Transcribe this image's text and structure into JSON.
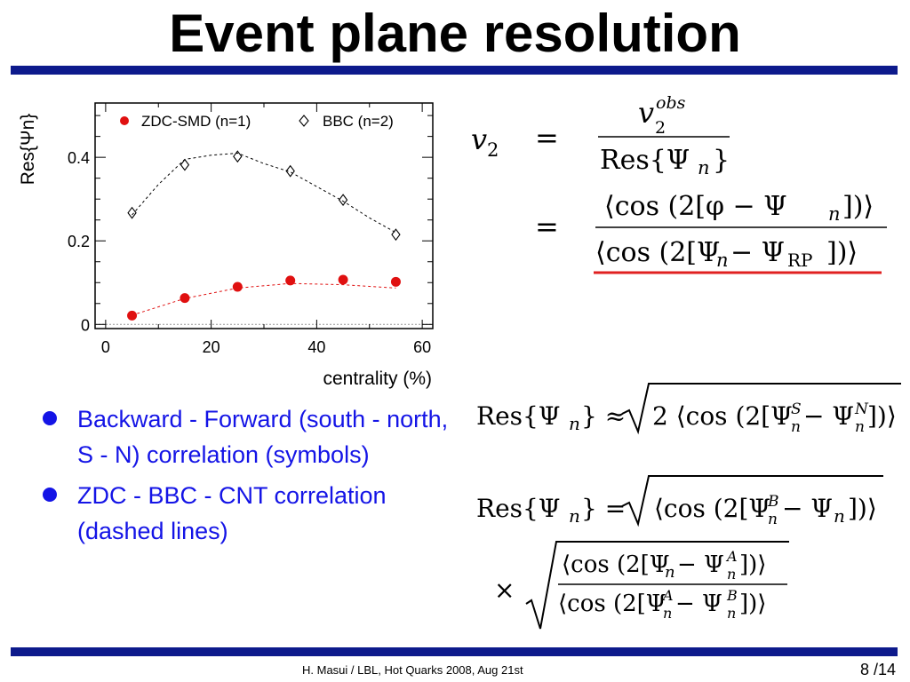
{
  "slide": {
    "title": "Event plane resolution",
    "bullets": [
      "Backward - Forward (south - north, S - N) correlation (symbols)",
      "ZDC - BBC - CNT correlation (dashed lines)"
    ],
    "footer": {
      "credit": "H. Masui / LBL,  Hot Quarks 2008, Aug 21st",
      "page": "8 /14"
    },
    "colors": {
      "rule": "#0d1a8c",
      "bullet_text": "#1414e6",
      "zdc_series": "#e01010",
      "underline": "#e02020"
    }
  },
  "chart_data": {
    "type": "scatter",
    "xlabel": "centrality (%)",
    "ylabel": "Res{Ψn}",
    "xlim": [
      -2,
      62
    ],
    "ylim": [
      -0.01,
      0.53
    ],
    "xticks": [
      0,
      20,
      40,
      60
    ],
    "yticks": [
      0,
      0.2,
      0.4
    ],
    "ytick_labels": [
      "0",
      "0.2",
      "0.4"
    ],
    "legend_position": "top",
    "series": [
      {
        "name": "ZDC-SMD (n=1)",
        "marker": "filled-circle",
        "color": "#e01010",
        "x": [
          5,
          15,
          25,
          35,
          45,
          55
        ],
        "y": [
          0.021,
          0.063,
          0.09,
          0.105,
          0.107,
          0.102
        ]
      },
      {
        "name": "BBC (n=2)",
        "marker": "open-diamond",
        "color": "#000000",
        "x": [
          5,
          15,
          25,
          35,
          45,
          55
        ],
        "y": [
          0.267,
          0.382,
          0.402,
          0.367,
          0.298,
          0.215
        ]
      }
    ],
    "dashed_lines": [
      {
        "color": "#e01010",
        "x": [
          5,
          15,
          25,
          35,
          45,
          55
        ],
        "y": [
          0.022,
          0.062,
          0.087,
          0.098,
          0.095,
          0.087
        ]
      },
      {
        "color": "#000000",
        "x": [
          5,
          10,
          15,
          20,
          25,
          30,
          35,
          40,
          45,
          50,
          55
        ],
        "y": [
          0.262,
          0.335,
          0.395,
          0.405,
          0.41,
          0.385,
          0.365,
          0.33,
          0.295,
          0.255,
          0.22
        ]
      }
    ]
  },
  "formulas": {
    "v2_lhs": "v",
    "v2_sub": "2",
    "obs": "obs",
    "res_psi": "Res{Ψ",
    "cos_sym": "cos",
    "rp": "RP"
  }
}
